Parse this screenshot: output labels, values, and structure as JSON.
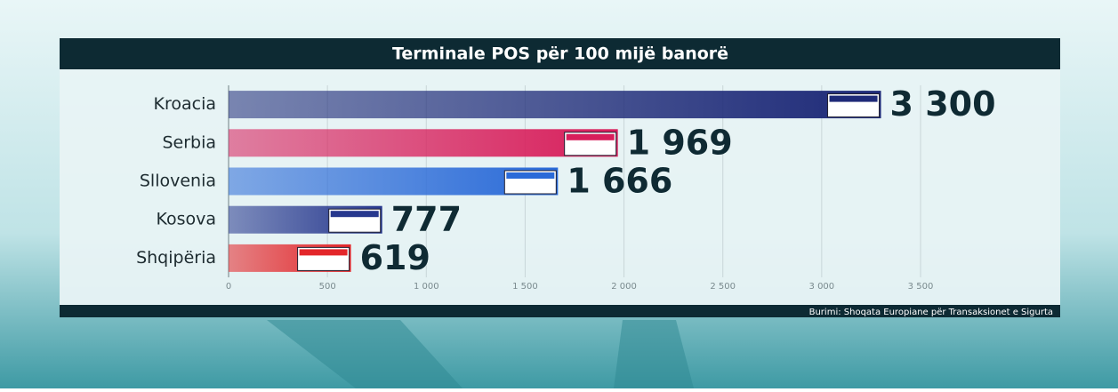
{
  "chart_data": {
    "type": "hbar",
    "title": "Terminale POS për 100 mijë banorë",
    "categories": [
      "Kroacia",
      "Serbia",
      "Sllovenia",
      "Kosova",
      "Shqipëria"
    ],
    "values": [
      3300,
      1969,
      1666,
      777,
      619
    ],
    "value_labels": [
      "3 300",
      "1 969",
      "1 666",
      "777",
      "619"
    ],
    "colors": [
      "#1e2a78",
      "#d81e5b",
      "#2a6ad8",
      "#27388e",
      "#e3262a"
    ],
    "xlim": [
      0,
      3500
    ],
    "xticks": [
      0,
      500,
      {
        "value": 1000,
        "label": "1 000"
      },
      {
        "value": 1500,
        "label": "1 500"
      },
      {
        "value": 2000,
        "label": "2 000"
      },
      {
        "value": 2500,
        "label": "2 500"
      },
      {
        "value": 3000,
        "label": "3 000"
      },
      {
        "value": 3500,
        "label": "3 500"
      }
    ],
    "grid": true,
    "source": "Burimi: Shoqata Europiane për Transaksionet e Sigurta"
  }
}
